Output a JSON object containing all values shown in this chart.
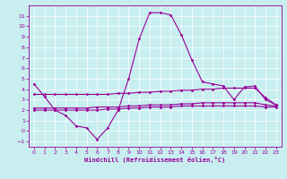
{
  "x": [
    0,
    1,
    2,
    3,
    4,
    5,
    6,
    7,
    8,
    9,
    10,
    11,
    12,
    13,
    14,
    15,
    16,
    17,
    18,
    19,
    20,
    21,
    22,
    23
  ],
  "main_line": [
    4.5,
    3.3,
    2.0,
    1.5,
    0.5,
    0.3,
    -0.8,
    0.3,
    2.0,
    5.0,
    8.8,
    11.3,
    11.3,
    11.1,
    9.2,
    6.8,
    4.7,
    4.5,
    4.3,
    3.0,
    4.2,
    4.3,
    3.0,
    2.5
  ],
  "line2": [
    3.5,
    3.5,
    3.5,
    3.5,
    3.5,
    3.5,
    3.5,
    3.5,
    3.6,
    3.6,
    3.7,
    3.7,
    3.8,
    3.8,
    3.9,
    3.9,
    4.0,
    4.0,
    4.1,
    4.1,
    4.1,
    4.1,
    3.2,
    2.5
  ],
  "line3": [
    2.2,
    2.2,
    2.2,
    2.2,
    2.2,
    2.2,
    2.3,
    2.3,
    2.3,
    2.4,
    2.4,
    2.5,
    2.5,
    2.5,
    2.6,
    2.6,
    2.7,
    2.7,
    2.7,
    2.7,
    2.7,
    2.7,
    2.5,
    2.4
  ],
  "line4": [
    2.0,
    2.0,
    2.0,
    2.0,
    2.0,
    2.0,
    2.0,
    2.1,
    2.1,
    2.2,
    2.2,
    2.3,
    2.3,
    2.3,
    2.4,
    2.4,
    2.4,
    2.4,
    2.4,
    2.4,
    2.4,
    2.4,
    2.3,
    2.3
  ],
  "line_color": "#990099",
  "bg_color": "#c8eef0",
  "grid_color": "#ffffff",
  "xlabel": "Windchill (Refroidissement éolien,°C)",
  "ylim": [
    -1.5,
    12.0
  ],
  "xlim": [
    -0.5,
    23.5
  ],
  "yticks": [
    -1,
    0,
    1,
    2,
    3,
    4,
    5,
    6,
    7,
    8,
    9,
    10,
    11
  ],
  "xticks": [
    0,
    1,
    2,
    3,
    4,
    5,
    6,
    7,
    8,
    9,
    10,
    11,
    12,
    13,
    14,
    15,
    16,
    17,
    18,
    19,
    20,
    21,
    22,
    23
  ],
  "marker": "D",
  "markersize": 1.8,
  "linewidth": 0.8,
  "tick_labelsize": 4.5,
  "xlabel_fontsize": 5.0
}
